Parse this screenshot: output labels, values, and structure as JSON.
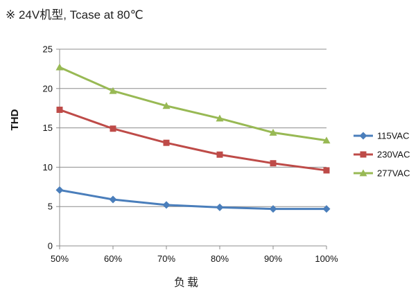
{
  "header": {
    "note": "※ 24V机型, Tcase at 80℃"
  },
  "chart_data": {
    "type": "line",
    "title": "",
    "xlabel": "负载",
    "ylabel": "THD",
    "categories": [
      "50%",
      "60%",
      "70%",
      "80%",
      "90%",
      "100%"
    ],
    "ylim": [
      0,
      25
    ],
    "yticks": [
      0,
      5,
      10,
      15,
      20,
      25
    ],
    "grid": true,
    "legend_position": "right",
    "series": [
      {
        "name": "115VAC",
        "color": "#4A7EBB",
        "marker": "diamond",
        "values": [
          7.1,
          5.9,
          5.2,
          4.9,
          4.7,
          4.7
        ]
      },
      {
        "name": "230VAC",
        "color": "#BE4B48",
        "marker": "square",
        "values": [
          17.3,
          14.9,
          13.1,
          11.6,
          10.5,
          9.6
        ]
      },
      {
        "name": "277VAC",
        "color": "#98B954",
        "marker": "triangle",
        "values": [
          22.7,
          19.7,
          17.8,
          16.2,
          14.4,
          13.4
        ]
      }
    ]
  }
}
